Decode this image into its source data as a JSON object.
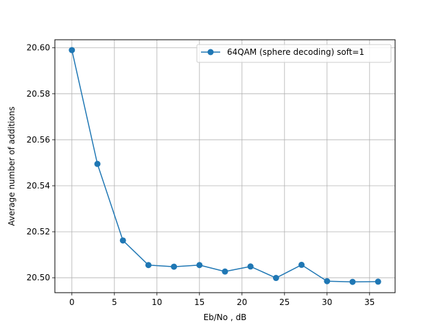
{
  "chart_data": {
    "type": "line",
    "title": "",
    "xlabel": "Eb/No , dB",
    "ylabel": "Average number of additions",
    "xlim": [
      -2,
      38
    ],
    "ylim": [
      20.4935,
      20.6035
    ],
    "xticks": [
      0,
      5,
      10,
      15,
      20,
      25,
      30,
      35
    ],
    "yticks": [
      20.5,
      20.52,
      20.54,
      20.56,
      20.58,
      20.6
    ],
    "ytick_labels": [
      "20.50",
      "20.52",
      "20.54",
      "20.56",
      "20.58",
      "20.60"
    ],
    "grid": true,
    "legend": "top-right",
    "series": [
      {
        "name": "64QAM (sphere decoding) soft=1",
        "color": "#1f77b4",
        "marker": "circle",
        "x": [
          0,
          3,
          6,
          9,
          12,
          15,
          18,
          21,
          24,
          27,
          30,
          33,
          36
        ],
        "y": [
          20.599,
          20.5495,
          20.5162,
          20.5055,
          20.5048,
          20.5055,
          20.5027,
          20.5049,
          20.4999,
          20.5056,
          20.4985,
          20.4982,
          20.4983
        ]
      }
    ]
  }
}
